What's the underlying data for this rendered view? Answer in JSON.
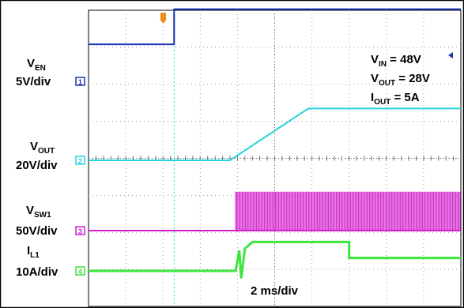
{
  "chart_data": {
    "type": "line",
    "timebase": "2 ms/div",
    "divisions": {
      "x": 10,
      "y": 8
    },
    "annotations": {
      "vin_label": "V",
      "vin_sub": "IN",
      "vin_value": " = 48V",
      "vout_label": "V",
      "vout_sub": "OUT",
      "vout_value": " = 28V",
      "iout_label": "I",
      "iout_sub": "OUT",
      "iout_value": " = 5A"
    },
    "channels": [
      {
        "id": "1",
        "name": "V",
        "sub": "EN",
        "scale": "5V/div",
        "color": "#1c34b4",
        "points": [
          [
            0,
            1.0
          ],
          [
            2.3,
            1.0
          ],
          [
            2.3,
            1.95
          ],
          [
            10,
            1.95
          ]
        ]
      },
      {
        "id": "2",
        "name": "V",
        "sub": "OUT",
        "scale": "20V/div",
        "color": "#28d2dc",
        "points": [
          [
            0,
            0
          ],
          [
            3.8,
            0
          ],
          [
            5.9,
            1.4
          ],
          [
            10,
            1.4
          ]
        ]
      },
      {
        "id": "3",
        "name": "V",
        "sub": "SW1",
        "scale": "50V/div",
        "color": "#d21ecb",
        "points": [
          [
            0,
            0
          ],
          [
            3.95,
            0
          ],
          [
            10,
            0
          ]
        ],
        "switching": {
          "start_div": 3.95,
          "end_div": 10,
          "high_level": 1.05
        }
      },
      {
        "id": "4",
        "name": "I",
        "sub": "L1",
        "scale": "10A/div",
        "color": "#3ce63c",
        "points": [
          [
            0,
            0
          ],
          [
            3.95,
            0
          ],
          [
            4.05,
            0.55
          ],
          [
            4.1,
            -0.2
          ],
          [
            4.2,
            0.6
          ],
          [
            4.4,
            0.78
          ],
          [
            7.0,
            0.78
          ],
          [
            7.0,
            0.35
          ],
          [
            10,
            0.35
          ]
        ]
      }
    ]
  }
}
